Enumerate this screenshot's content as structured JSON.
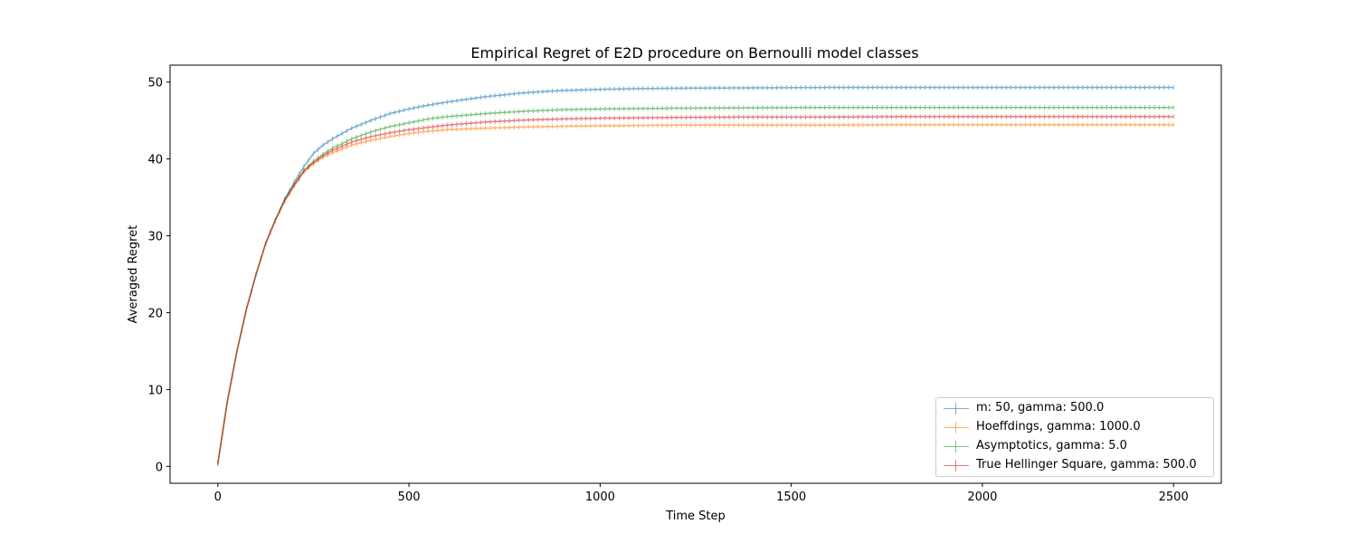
{
  "chart_data": {
    "type": "line",
    "title": "Empirical Regret of E2D procedure on Bernoulli model classes",
    "xlabel": "Time Step",
    "ylabel": "Averaged Regret",
    "xlim": [
      -125,
      2625
    ],
    "ylim": [
      -2.2,
      52.2
    ],
    "xticks": [
      0,
      500,
      1000,
      1500,
      2000,
      2500
    ],
    "yticks": [
      0,
      10,
      20,
      30,
      40,
      50
    ],
    "grid": false,
    "legend_position": "lower right",
    "error_bars": true,
    "series": [
      {
        "name": "m: 50, gamma: 500.0",
        "color": "#1f77b4",
        "x": [
          0,
          25,
          50,
          75,
          100,
          125,
          150,
          175,
          200,
          225,
          250,
          275,
          300,
          350,
          400,
          450,
          500,
          550,
          600,
          700,
          800,
          900,
          1000,
          1100,
          1200,
          1400,
          1600,
          1800,
          2000,
          2200,
          2500
        ],
        "y": [
          0.4,
          8.5,
          15.0,
          20.5,
          25.0,
          29.0,
          32.0,
          34.8,
          37.0,
          39.0,
          40.7,
          41.8,
          42.6,
          44.0,
          45.0,
          45.9,
          46.5,
          47.0,
          47.4,
          48.1,
          48.6,
          48.9,
          49.05,
          49.15,
          49.2,
          49.25,
          49.3,
          49.3,
          49.3,
          49.3,
          49.3
        ]
      },
      {
        "name": "Hoeffdings, gamma: 1000.0",
        "color": "#ff7f0e",
        "x": [
          0,
          25,
          50,
          75,
          100,
          125,
          150,
          175,
          200,
          225,
          250,
          275,
          300,
          350,
          400,
          450,
          500,
          550,
          600,
          700,
          800,
          900,
          1000,
          1100,
          1200,
          1400,
          1600,
          1800,
          2000,
          2200,
          2500
        ],
        "y": [
          0.4,
          8.5,
          15.0,
          20.5,
          25.0,
          29.0,
          32.0,
          34.5,
          36.5,
          38.3,
          39.4,
          40.2,
          40.8,
          41.8,
          42.4,
          42.9,
          43.3,
          43.6,
          43.8,
          44.0,
          44.15,
          44.25,
          44.3,
          44.35,
          44.4,
          44.4,
          44.4,
          44.45,
          44.45,
          44.45,
          44.45
        ]
      },
      {
        "name": "Asymptotics, gamma: 5.0",
        "color": "#2ca02c",
        "x": [
          0,
          25,
          50,
          75,
          100,
          125,
          150,
          175,
          200,
          225,
          250,
          275,
          300,
          350,
          400,
          450,
          500,
          550,
          600,
          700,
          800,
          900,
          1000,
          1100,
          1200,
          1400,
          1600,
          1800,
          2000,
          2200,
          2500
        ],
        "y": [
          0.4,
          8.5,
          15.0,
          20.5,
          25.0,
          29.0,
          32.0,
          34.7,
          36.7,
          38.5,
          39.7,
          40.6,
          41.4,
          42.6,
          43.5,
          44.2,
          44.7,
          45.2,
          45.5,
          45.9,
          46.2,
          46.4,
          46.5,
          46.55,
          46.6,
          46.65,
          46.7,
          46.7,
          46.7,
          46.7,
          46.7
        ]
      },
      {
        "name": "True Hellinger Square, gamma: 500.0",
        "color": "#d62728",
        "x": [
          0,
          25,
          50,
          75,
          100,
          125,
          150,
          175,
          200,
          225,
          250,
          275,
          300,
          350,
          400,
          450,
          500,
          550,
          600,
          700,
          800,
          900,
          1000,
          1100,
          1200,
          1400,
          1600,
          1800,
          2000,
          2200,
          2500
        ],
        "y": [
          0.4,
          8.5,
          15.0,
          20.5,
          25.0,
          29.0,
          32.0,
          34.6,
          36.6,
          38.4,
          39.5,
          40.4,
          41.1,
          42.2,
          42.9,
          43.4,
          43.8,
          44.1,
          44.4,
          44.8,
          45.05,
          45.2,
          45.3,
          45.35,
          45.4,
          45.45,
          45.45,
          45.5,
          45.5,
          45.5,
          45.5
        ]
      }
    ]
  }
}
